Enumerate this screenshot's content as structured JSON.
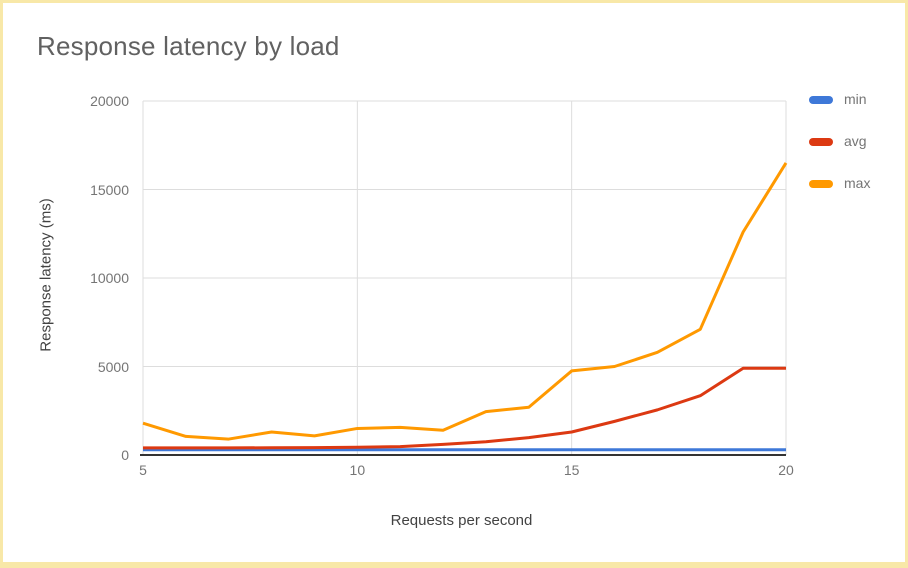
{
  "page": {
    "background": "#ffffff",
    "border_color": "#f8e8a8"
  },
  "colors": {
    "title_text": "#616161",
    "axis_title_text": "#424242",
    "tick_label_text": "#757575",
    "gridline": "#dddddd",
    "axis_line": "#333333"
  },
  "chart_data": {
    "type": "line",
    "title": "Response latency by load",
    "xlabel": "Requests per second",
    "ylabel": "Response latency (ms)",
    "x": [
      5,
      6,
      7,
      8,
      9,
      10,
      11,
      12,
      13,
      14,
      15,
      16,
      17,
      18,
      19,
      20
    ],
    "series": [
      {
        "name": "min",
        "color": "#3e78d8",
        "values": [
          300,
          300,
          300,
          300,
          300,
          300,
          300,
          300,
          300,
          300,
          300,
          300,
          300,
          300,
          300,
          300
        ]
      },
      {
        "name": "avg",
        "color": "#dc3912",
        "values": [
          400,
          400,
          400,
          410,
          420,
          440,
          470,
          600,
          750,
          980,
          1300,
          1900,
          2550,
          3350,
          4900,
          4900
        ]
      },
      {
        "name": "max",
        "color": "#ff9900",
        "values": [
          1800,
          1050,
          900,
          1300,
          1080,
          1500,
          1560,
          1400,
          2450,
          2700,
          4750,
          5000,
          5800,
          7100,
          12600,
          16500
        ]
      }
    ],
    "xlim": [
      5,
      20
    ],
    "ylim": [
      0,
      20000
    ],
    "xticks": [
      "5",
      "10",
      "15",
      "20"
    ],
    "yticks": [
      "0",
      "5000",
      "10000",
      "15000",
      "20000"
    ],
    "grid": true,
    "legend_position": "right"
  }
}
